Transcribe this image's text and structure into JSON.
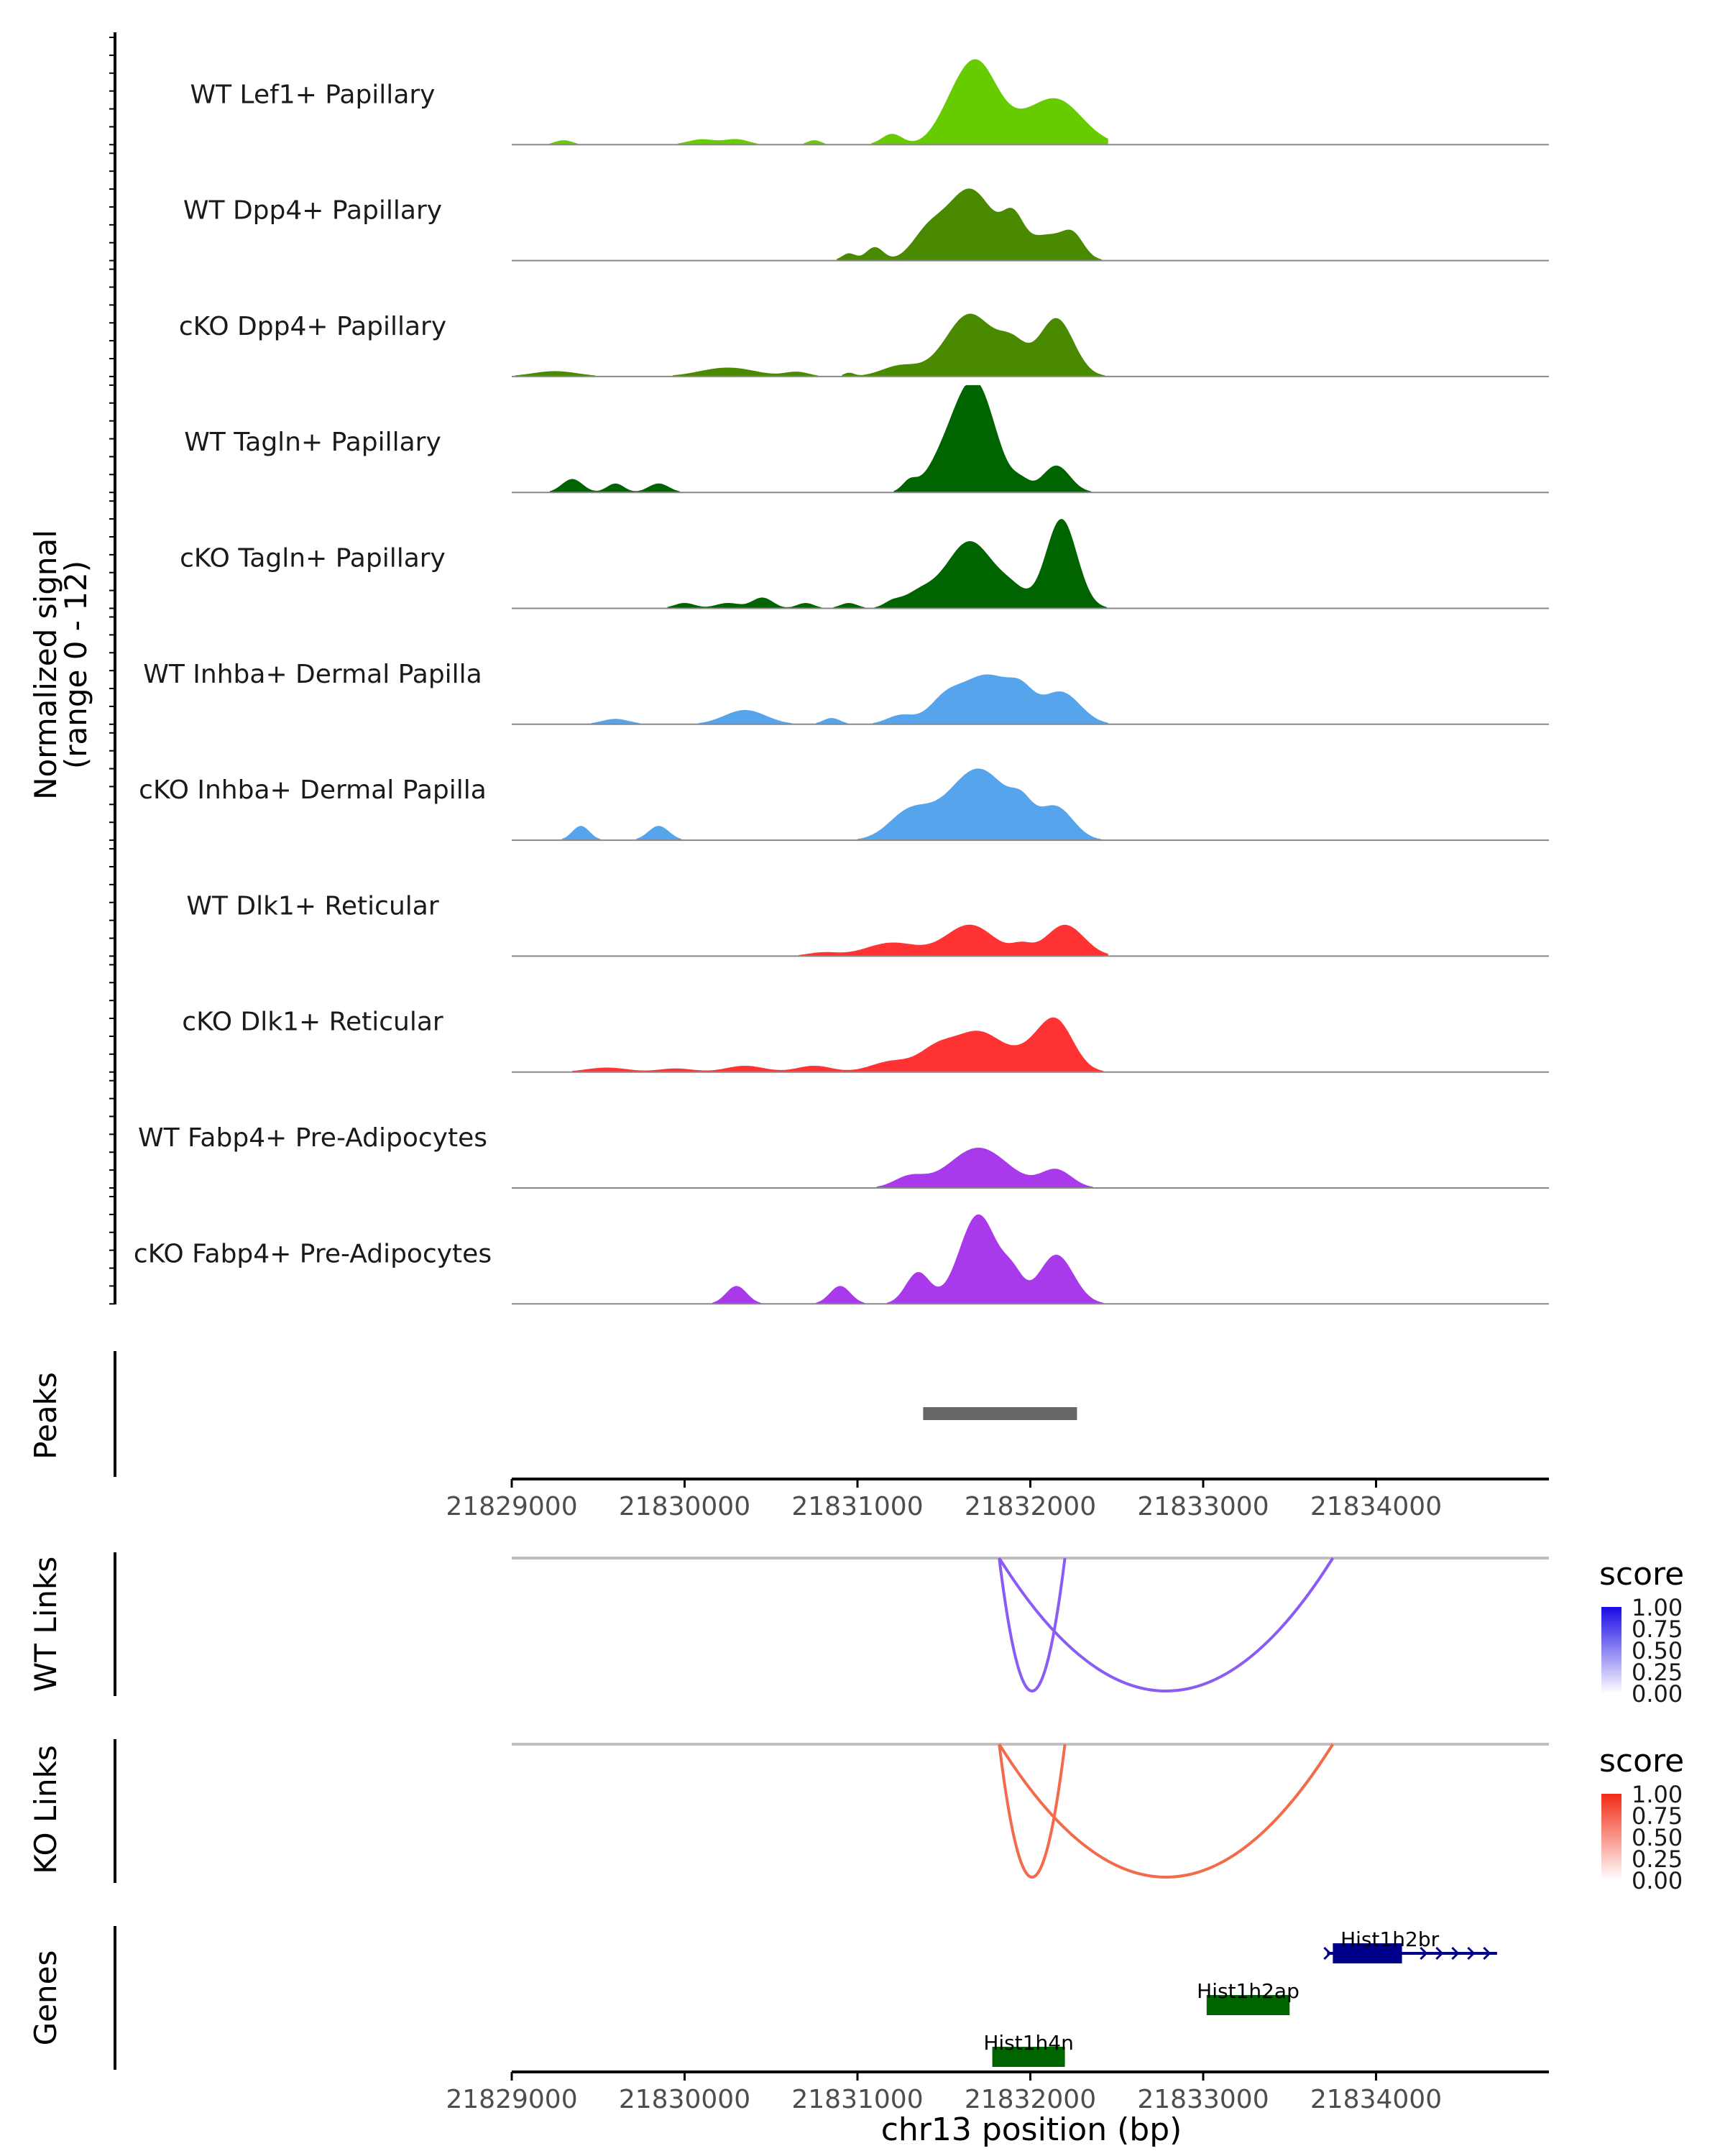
{
  "figure": {
    "ylabel_line1": "Normalized signal",
    "ylabel_line2": "(range 0 - 12)",
    "xlabel": "chr13 position (bp)"
  },
  "chart_data": {
    "type": "area",
    "x_range": [
      21829000,
      21835000
    ],
    "x_ticks": [
      "21829000",
      "21830000",
      "21831000",
      "21832000",
      "21833000",
      "21834000"
    ],
    "y_range": [
      0,
      12
    ],
    "coverage_tracks": [
      {
        "name": "WT Lef1+ Papillary",
        "color": "#66CC00",
        "peaks": [
          [
            21829300,
            0.5,
            50
          ],
          [
            21830100,
            0.6,
            80
          ],
          [
            21830300,
            0.6,
            70
          ],
          [
            21830750,
            0.5,
            40
          ],
          [
            21831200,
            1.2,
            60
          ],
          [
            21831550,
            3.2,
            100
          ],
          [
            21831700,
            8,
            110
          ],
          [
            21832150,
            5,
            150
          ],
          [
            21831900,
            1.5,
            120
          ]
        ]
      },
      {
        "name": "WT Dpp4+ Papillary",
        "color": "#4A8A00",
        "peaks": [
          [
            21830950,
            0.8,
            40
          ],
          [
            21831100,
            1.5,
            50
          ],
          [
            21831400,
            2.5,
            90
          ],
          [
            21831650,
            8,
            140
          ],
          [
            21831900,
            3.5,
            60
          ],
          [
            21832100,
            2.8,
            120
          ],
          [
            21832250,
            2,
            60
          ]
        ]
      },
      {
        "name": "cKO Dpp4+ Papillary",
        "color": "#4A8A00",
        "peaks": [
          [
            21829250,
            0.6,
            130
          ],
          [
            21830250,
            1,
            160
          ],
          [
            21830650,
            0.5,
            70
          ],
          [
            21830950,
            0.4,
            30
          ],
          [
            21831250,
            1.2,
            110
          ],
          [
            21831650,
            7,
            140
          ],
          [
            21831900,
            3,
            80
          ],
          [
            21832150,
            6.5,
            100
          ]
        ]
      },
      {
        "name": "WT Tagln+ Papillary",
        "color": "#006400",
        "peaks": [
          [
            21829350,
            1.5,
            60
          ],
          [
            21829600,
            1,
            50
          ],
          [
            21829850,
            1,
            60
          ],
          [
            21831300,
            1,
            40
          ],
          [
            21831550,
            5,
            120
          ],
          [
            21831700,
            10,
            110
          ],
          [
            21831950,
            1,
            50
          ],
          [
            21832150,
            3,
            80
          ]
        ]
      },
      {
        "name": "cKO Tagln+ Papillary",
        "color": "#006400",
        "peaks": [
          [
            21830000,
            0.6,
            60
          ],
          [
            21830250,
            0.6,
            70
          ],
          [
            21830450,
            1.2,
            60
          ],
          [
            21830700,
            0.6,
            50
          ],
          [
            21830950,
            0.6,
            50
          ],
          [
            21831200,
            0.6,
            50
          ],
          [
            21831350,
            1.5,
            90
          ],
          [
            21831650,
            7.5,
            140
          ],
          [
            21831900,
            1.5,
            80
          ],
          [
            21832180,
            10,
            90
          ]
        ]
      },
      {
        "name": "WT Inhba+ Dermal Papilla",
        "color": "#56A5EC",
        "peaks": [
          [
            21829600,
            0.6,
            80
          ],
          [
            21830350,
            1.6,
            120
          ],
          [
            21830850,
            0.7,
            50
          ],
          [
            21831250,
            1,
            80
          ],
          [
            21831500,
            2,
            90
          ],
          [
            21831750,
            5.5,
            160
          ],
          [
            21831950,
            2,
            70
          ],
          [
            21832180,
            3.5,
            110
          ]
        ]
      },
      {
        "name": "cKO Inhba+ Dermal Papilla",
        "color": "#56A5EC",
        "peaks": [
          [
            21829400,
            1.6,
            50
          ],
          [
            21829850,
            1.6,
            60
          ],
          [
            21831300,
            3,
            120
          ],
          [
            21831700,
            8,
            180
          ],
          [
            21831950,
            2,
            60
          ],
          [
            21832150,
            3.5,
            100
          ]
        ]
      },
      {
        "name": "WT Dlk1+ Reticular",
        "color": "#FF3333",
        "peaks": [
          [
            21830800,
            0.4,
            90
          ],
          [
            21831200,
            1.5,
            150
          ],
          [
            21831650,
            3.5,
            140
          ],
          [
            21831950,
            1,
            60
          ],
          [
            21832200,
            3.5,
            110
          ]
        ]
      },
      {
        "name": "cKO Dlk1+ Reticular",
        "color": "#FF3333",
        "peaks": [
          [
            21829550,
            0.5,
            120
          ],
          [
            21829950,
            0.4,
            100
          ],
          [
            21830350,
            0.7,
            110
          ],
          [
            21830750,
            0.7,
            100
          ],
          [
            21831200,
            1.2,
            120
          ],
          [
            21831450,
            2,
            100
          ],
          [
            21831700,
            4.5,
            150
          ],
          [
            21832000,
            1.5,
            100
          ],
          [
            21832150,
            5.5,
            100
          ]
        ]
      },
      {
        "name": "WT Fabp4+ Pre-Adipocytes",
        "color": "#A83AEB",
        "peaks": [
          [
            21831300,
            1.2,
            90
          ],
          [
            21831700,
            4.5,
            170
          ],
          [
            21832150,
            2,
            90
          ]
        ]
      },
      {
        "name": "cKO Fabp4+ Pre-Adipocytes",
        "color": "#A83AEB",
        "peaks": [
          [
            21830300,
            2,
            60
          ],
          [
            21830900,
            2,
            60
          ],
          [
            21831350,
            3.5,
            70
          ],
          [
            21831700,
            10,
            110
          ],
          [
            21831900,
            2.5,
            60
          ],
          [
            21832150,
            5.5,
            100
          ]
        ]
      }
    ],
    "peaks_track": {
      "label": "Peaks",
      "regions": [
        [
          21831380,
          21832270
        ]
      ],
      "color": "#666666"
    },
    "link_tracks": [
      {
        "label": "WT Links",
        "color": "#8A5CF5",
        "links": [
          [
            21831820,
            21832200,
            -0.9
          ],
          [
            21831820,
            21833750,
            -0.9
          ]
        ]
      },
      {
        "label": "KO Links",
        "color": "#F26B4A",
        "links": [
          [
            21831820,
            21832200,
            -0.9
          ],
          [
            21831820,
            21833750,
            -0.9
          ]
        ]
      }
    ],
    "legends": [
      {
        "title": "score",
        "colors": [
          "#ffffff",
          "#1a0ae6"
        ],
        "ticks": [
          "1.00",
          "0.75",
          "0.50",
          "0.25",
          "0.00"
        ]
      },
      {
        "title": "score",
        "colors": [
          "#ffffff",
          "#f22b16"
        ],
        "ticks": [
          "1.00",
          "0.75",
          "0.50",
          "0.25",
          "0.00"
        ]
      }
    ],
    "genes_track": {
      "label": "Genes",
      "genes": [
        {
          "name": "Hist1h2br",
          "start": 21833750,
          "end": 21834150,
          "arrow_end": 21834700,
          "color": "#00008B",
          "row": 0
        },
        {
          "name": "Hist1h2ap",
          "start": 21833020,
          "end": 21833500,
          "color": "#006400",
          "row": 1
        },
        {
          "name": "Hist1h4n",
          "start": 21831780,
          "end": 21832200,
          "color": "#006400",
          "row": 2
        }
      ]
    }
  }
}
